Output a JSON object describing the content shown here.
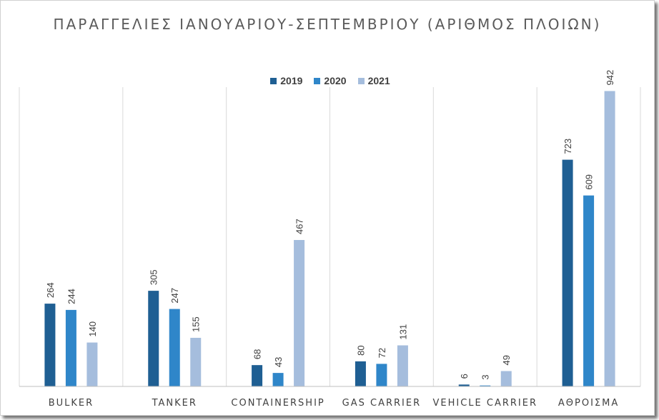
{
  "chart_data": {
    "type": "bar",
    "title": "ΠΑΡΑΓΓΕΛΙΕΣ ΙΑΝΟΥΑΡΙΟΥ-ΣΕΠΤΕΜΒΡΙΟΥ (ΑΡΙΘΜΟΣ ΠΛΟΙΩΝ)",
    "categories": [
      "BULKER",
      "TANKER",
      "CONTAINERSHIP",
      "GAS CARRIER",
      "VEHICLE CARRIER",
      "ΑΘΡΟΙΣΜΑ"
    ],
    "series": [
      {
        "name": "2019",
        "color": "#1f5f93",
        "values": [
          264,
          305,
          68,
          80,
          6,
          723
        ]
      },
      {
        "name": "2020",
        "color": "#2f86c9",
        "values": [
          244,
          247,
          43,
          72,
          3,
          609
        ]
      },
      {
        "name": "2021",
        "color": "#a5bddd",
        "values": [
          140,
          155,
          467,
          131,
          49,
          942
        ]
      }
    ],
    "ylim": [
      0,
      1000
    ],
    "legend_position": "top",
    "grid": "vertical category separators",
    "data_labels": true
  }
}
